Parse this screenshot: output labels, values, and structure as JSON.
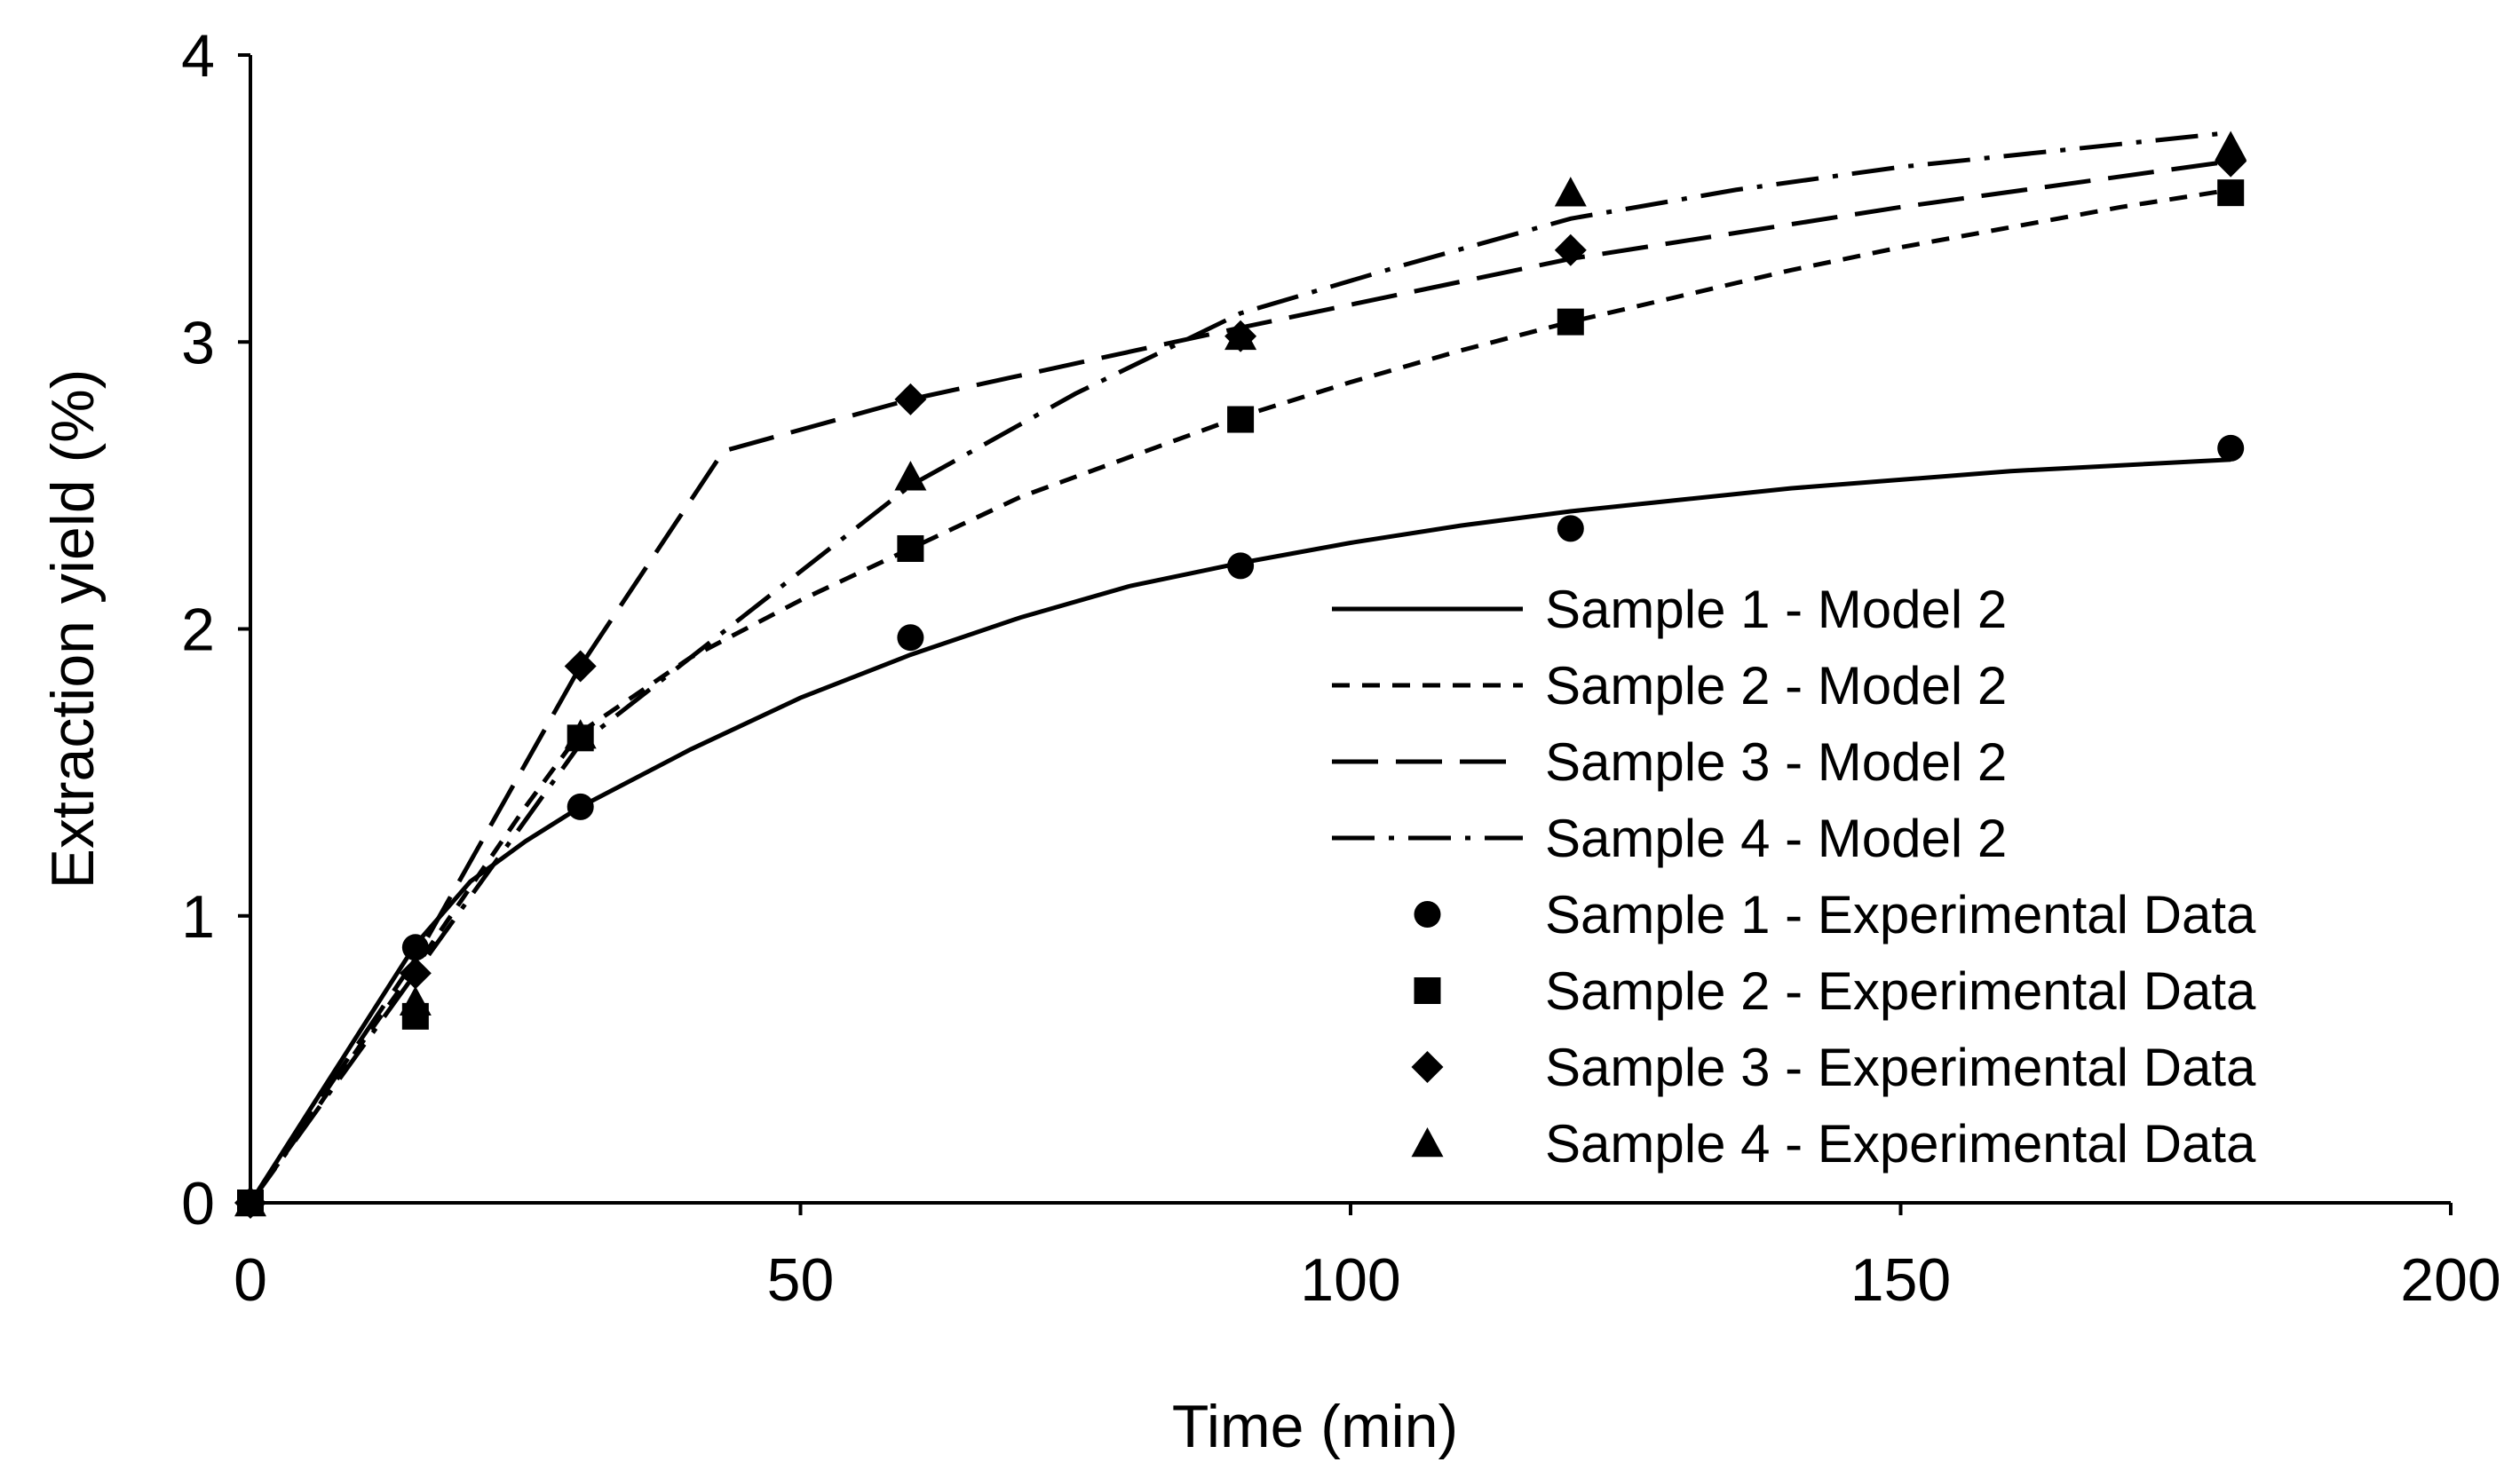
{
  "chart_data": {
    "type": "line",
    "title": "",
    "xlabel": "Time (min)",
    "ylabel": "Extraction yield (%)",
    "xlim": [
      0,
      200
    ],
    "ylim": [
      0,
      4
    ],
    "xticks": [
      0,
      50,
      100,
      150,
      200
    ],
    "yticks": [
      0,
      1,
      2,
      3,
      4
    ],
    "grid": false,
    "legend_position": "center-right",
    "model_series": [
      {
        "name": "Sample 1 - Model 2",
        "dash": "solid",
        "x": [
          0,
          5,
          10,
          15,
          20,
          25,
          30,
          40,
          50,
          60,
          70,
          80,
          90,
          100,
          110,
          120,
          130,
          140,
          150,
          160,
          170,
          180
        ],
        "y": [
          0,
          0.3,
          0.6,
          0.9,
          1.12,
          1.26,
          1.38,
          1.58,
          1.76,
          1.91,
          2.04,
          2.15,
          2.23,
          2.3,
          2.36,
          2.41,
          2.45,
          2.49,
          2.52,
          2.55,
          2.57,
          2.59
        ]
      },
      {
        "name": "Sample 2 - Model 2",
        "dash": "short-dash",
        "x": [
          0,
          5,
          10,
          15,
          20,
          25,
          30,
          40,
          50,
          60,
          70,
          80,
          90,
          100,
          110,
          120,
          130,
          140,
          150,
          160,
          170,
          180
        ],
        "y": [
          0,
          0.27,
          0.55,
          0.82,
          1.1,
          1.38,
          1.64,
          1.9,
          2.1,
          2.28,
          2.46,
          2.6,
          2.74,
          2.86,
          2.97,
          3.07,
          3.16,
          3.25,
          3.33,
          3.4,
          3.47,
          3.53
        ]
      },
      {
        "name": "Sample 3 - Model 2",
        "dash": "long-dash",
        "x": [
          0,
          15,
          30,
          43,
          60,
          90,
          120,
          150,
          180
        ],
        "y": [
          0,
          0.85,
          1.87,
          2.62,
          2.8,
          3.05,
          3.29,
          3.47,
          3.63
        ]
      },
      {
        "name": "Sample 4 - Model 2",
        "dash": "dash-dot",
        "x": [
          0,
          15,
          30,
          45,
          60,
          75,
          90,
          105,
          120,
          135,
          150,
          165,
          180
        ],
        "y": [
          0,
          0.8,
          1.6,
          2.05,
          2.5,
          2.82,
          3.1,
          3.27,
          3.43,
          3.53,
          3.61,
          3.67,
          3.73
        ]
      }
    ],
    "experimental_series": [
      {
        "name": "Sample 1 - Experimental Data",
        "marker": "circle",
        "x": [
          0,
          15,
          30,
          60,
          90,
          120,
          180
        ],
        "y": [
          0,
          0.89,
          1.38,
          1.97,
          2.22,
          2.35,
          2.63
        ]
      },
      {
        "name": "Sample 2 - Experimental Data",
        "marker": "square",
        "x": [
          0,
          15,
          30,
          60,
          90,
          120,
          180
        ],
        "y": [
          0,
          0.65,
          1.62,
          2.28,
          2.73,
          3.07,
          3.52
        ]
      },
      {
        "name": "Sample 3 - Experimental Data",
        "marker": "diamond",
        "x": [
          0,
          15,
          30,
          60,
          90,
          120,
          180
        ],
        "y": [
          0,
          0.8,
          1.87,
          2.8,
          3.02,
          3.32,
          3.63
        ]
      },
      {
        "name": "Sample 4 - Experimental Data",
        "marker": "triangle",
        "x": [
          0,
          15,
          30,
          60,
          90,
          120,
          180
        ],
        "y": [
          0,
          0.7,
          1.63,
          2.53,
          3.02,
          3.52,
          3.68
        ]
      }
    ]
  }
}
